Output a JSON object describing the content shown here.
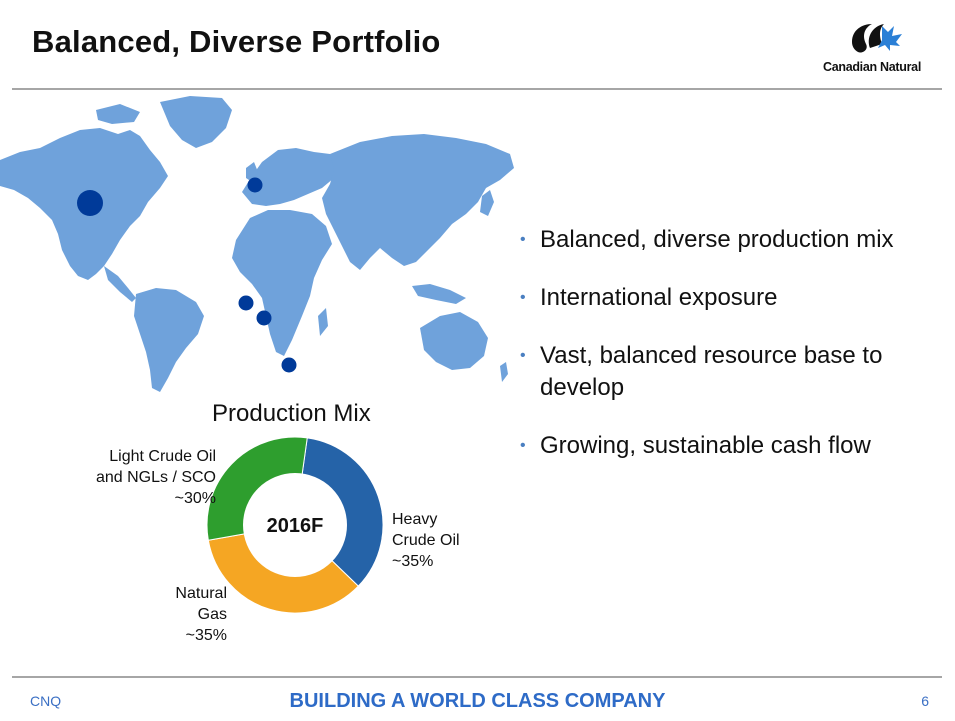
{
  "slide": {
    "title": "Balanced, Diverse Portfolio",
    "logo_text": "Canadian Natural"
  },
  "bullets": [
    {
      "text": "Balanced, diverse production mix"
    },
    {
      "text": "International exposure"
    },
    {
      "text": "Vast, balanced resource base to develop"
    },
    {
      "text": "Growing, sustainable cash flow"
    }
  ],
  "chart_data": {
    "type": "pie",
    "title": "Production Mix",
    "center_label": "2016F",
    "slices": [
      {
        "name": "Heavy Crude Oil",
        "label_lines": [
          "Heavy",
          "Crude Oil",
          "~35%"
        ],
        "value": 35,
        "color": "#2563a8"
      },
      {
        "name": "Natural Gas",
        "label_lines": [
          "Natural",
          "Gas",
          "~35%"
        ],
        "value": 35,
        "color": "#f5a623"
      },
      {
        "name": "Light Crude Oil and NGLs / SCO",
        "label_lines": [
          "Light Crude Oil",
          "and NGLs / SCO",
          "~30%"
        ],
        "value": 30,
        "color": "#2e9e2e"
      }
    ]
  },
  "map": {
    "land_color": "#6fa2db",
    "marker_color": "#003a99",
    "markers": [
      {
        "location": "Western Canada"
      },
      {
        "location": "North Sea"
      },
      {
        "location": "Côte d'Ivoire"
      },
      {
        "location": "Gabon"
      },
      {
        "location": "South Africa"
      }
    ]
  },
  "footer": {
    "left": "CNQ",
    "center": "BUILDING A WORLD CLASS COMPANY",
    "page": "6"
  }
}
